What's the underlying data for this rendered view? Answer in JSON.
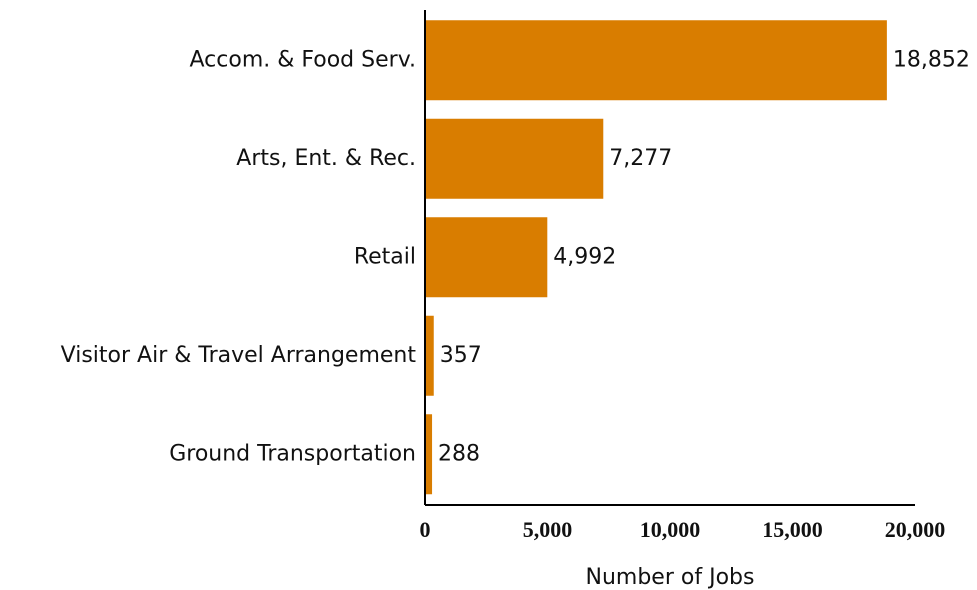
{
  "chart_data": {
    "type": "hbar",
    "categories": [
      "Accom. & Food Serv.",
      "Arts, Ent. & Rec.",
      "Retail",
      "Visitor Air & Travel Arrangement",
      "Ground Transportation"
    ],
    "values": [
      18852,
      7277,
      4992,
      357,
      288
    ],
    "value_labels": [
      "18,852",
      "7,277",
      "4,992",
      "357",
      "288"
    ],
    "color": "#d97d00",
    "xlim": [
      0,
      20000
    ],
    "xticks": [
      0,
      {
        "value": 5000,
        "label": "5,000"
      },
      {
        "value": 10000,
        "label": "10,000"
      },
      {
        "value": 15000,
        "label": "15,000"
      },
      {
        "value": 20000,
        "label": "20,000"
      }
    ],
    "x_label": "Number of Jobs",
    "grid": false
  }
}
